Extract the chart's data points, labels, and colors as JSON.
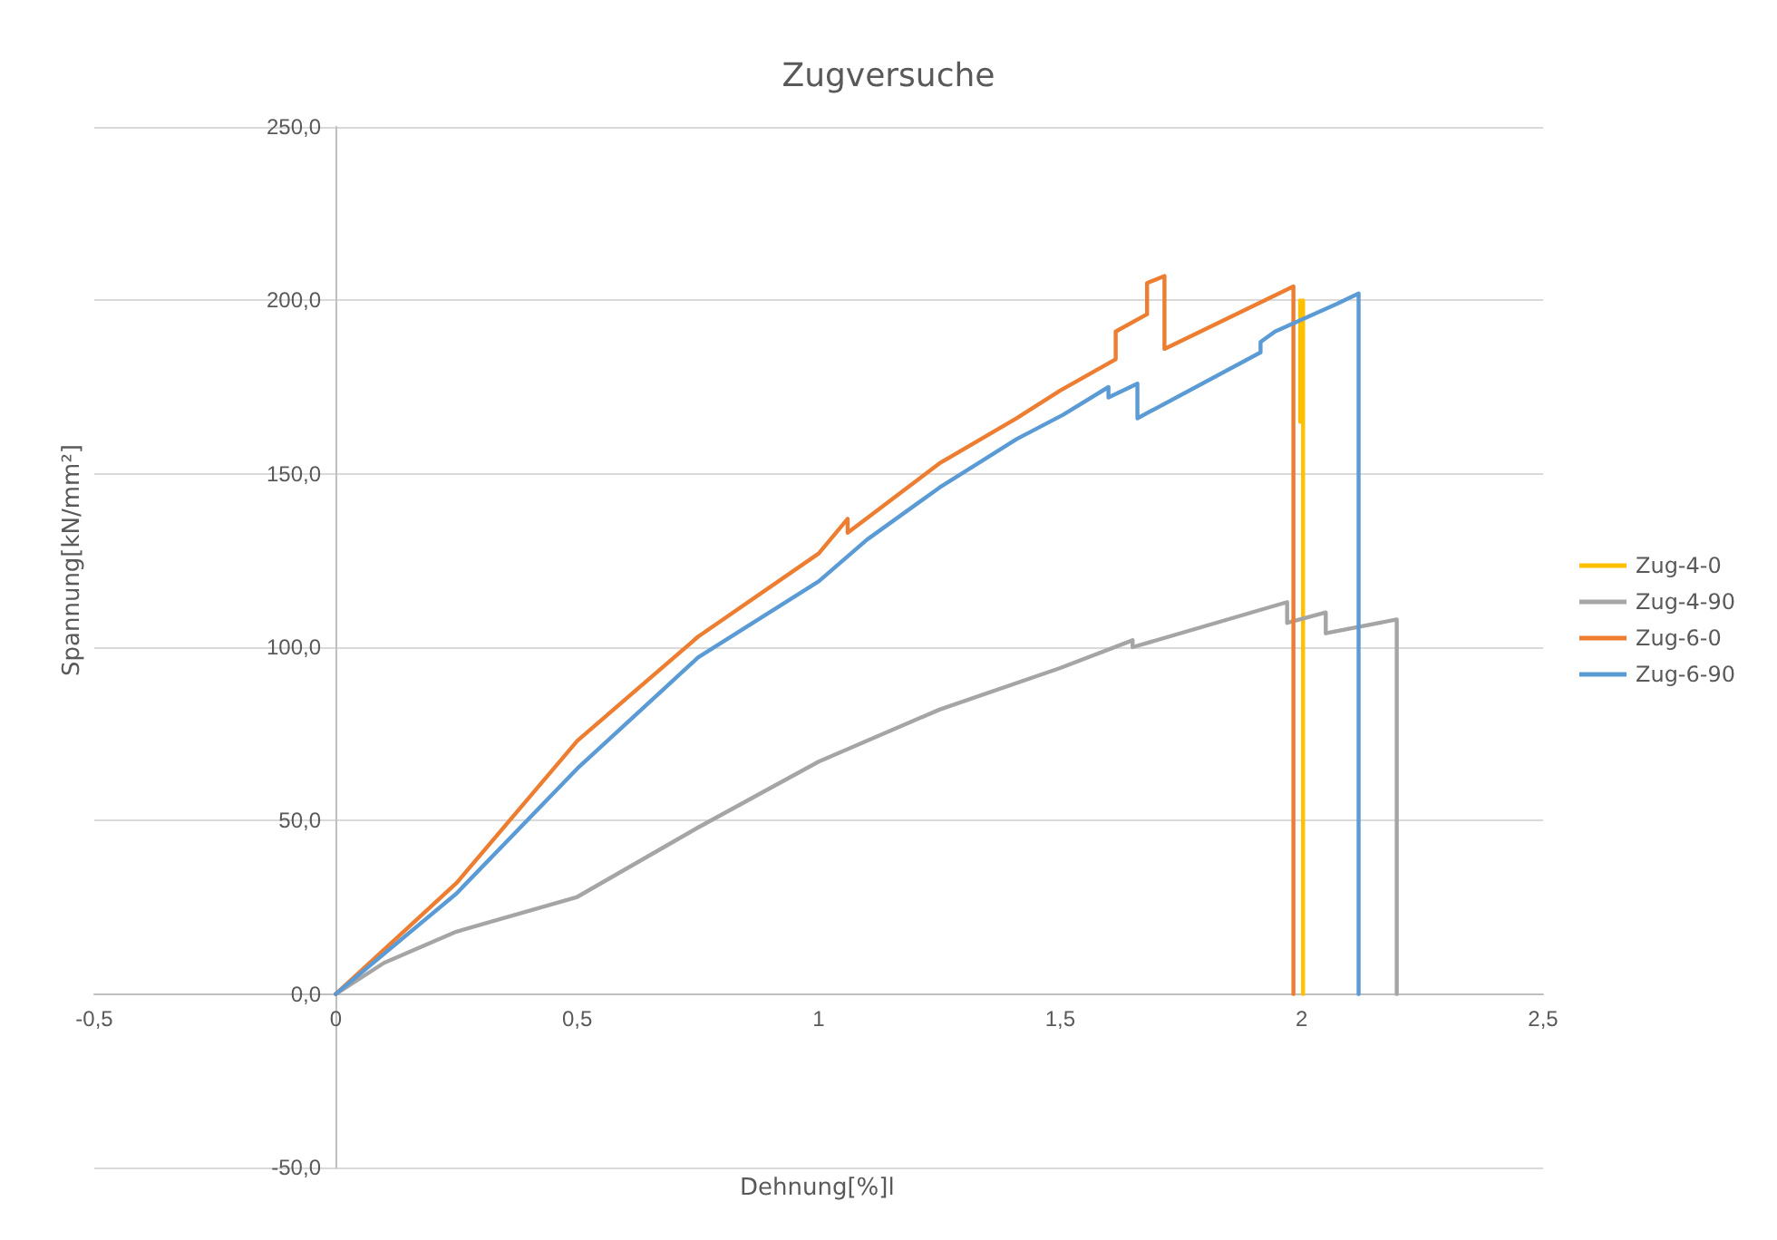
{
  "chart_data": {
    "type": "line",
    "title": "Zugversuche",
    "xlabel": "Dehnung[%]l",
    "ylabel": "Spannung[kN/mm²]",
    "xlim": [
      -0.5,
      2.5
    ],
    "xticks": [
      {
        "value": -0.5,
        "label": "-0,5"
      },
      0,
      {
        "value": 0.5,
        "label": "0,5"
      },
      1,
      {
        "value": 1.5,
        "label": "1,5"
      },
      2,
      {
        "value": 2.5,
        "label": "2,5"
      }
    ],
    "ylim": [
      -50,
      250
    ],
    "yticks": [
      {
        "value": -50,
        "label": "-50,0"
      },
      {
        "value": 0,
        "label": "0,0"
      },
      {
        "value": 50,
        "label": "50,0"
      },
      {
        "value": 100,
        "label": "100,0"
      },
      {
        "value": 150,
        "label": "150,0"
      },
      {
        "value": 200,
        "label": "200,0"
      },
      {
        "value": 250,
        "label": "250,0"
      }
    ],
    "grid": "y",
    "legend": "right",
    "marker": "none",
    "line_style": "solid",
    "series": [
      {
        "name": "Zug-4-0",
        "color": "#ffc000",
        "x": [
          1.997,
          1.997,
          2.003,
          2.003
        ],
        "values": [
          200,
          165,
          200,
          0
        ]
      },
      {
        "name": "Zug-4-90",
        "color": "#a5a5a5",
        "x": [
          0,
          0.1,
          0.25,
          0.5,
          0.75,
          1.0,
          1.25,
          1.5,
          1.65,
          1.65,
          1.97,
          1.97,
          2.05,
          2.05,
          2.197,
          2.197
        ],
        "values": [
          0,
          9,
          18,
          28,
          48,
          67,
          82,
          94,
          102,
          100,
          113,
          107,
          110,
          104,
          108,
          0
        ]
      },
      {
        "name": "Zug-6-0",
        "color": "#ed7d31",
        "x": [
          0,
          0.25,
          0.5,
          0.75,
          1.0,
          1.06,
          1.06,
          1.25,
          1.41,
          1.5,
          1.615,
          1.615,
          1.68,
          1.68,
          1.716,
          1.716,
          1.983,
          1.983
        ],
        "values": [
          0,
          32,
          73,
          103,
          127,
          137,
          133,
          153,
          166,
          174,
          183,
          191,
          196,
          205,
          207,
          186,
          204,
          0
        ]
      },
      {
        "name": "Zug-6-90",
        "color": "#5b9bd5",
        "x": [
          0,
          0.25,
          0.5,
          0.75,
          1.0,
          1.1,
          1.25,
          1.41,
          1.506,
          1.6,
          1.6,
          1.66,
          1.66,
          1.915,
          1.915,
          1.945,
          2.073,
          2.118,
          2.118
        ],
        "values": [
          0,
          29,
          65,
          97,
          119,
          131,
          146,
          160,
          167,
          175,
          172,
          176,
          166,
          185,
          188,
          191,
          199,
          202,
          0
        ]
      }
    ]
  }
}
